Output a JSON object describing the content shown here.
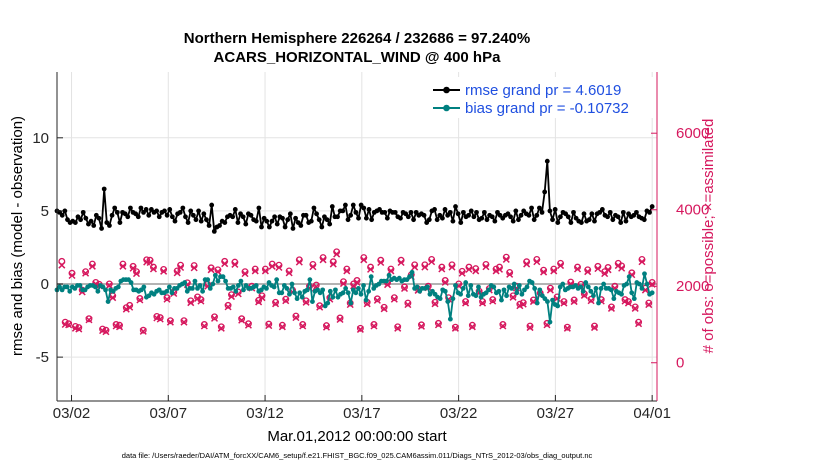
{
  "chart_data": {
    "type": "line",
    "title_line1": "Northern Hemisphere 226264 / 232686 = 97.240%",
    "title_line2": "ACARS_HORIZONTAL_WIND @ 400 hPa",
    "xlabel": "Mar.01,2012 00:00:00 start",
    "ylabel_left": "rmse and bias (model - observation)",
    "ylabel_right": "# of obs: o=possible; ×=assimilated",
    "footer": "data file: /Users/raeder/DAI/ATM_forcXX/CAM6_setup/f.e21.FHIST_BGC.f09_025.CAM6assim.011/Diags_NTrS_2012-03/obs_diag_output.nc",
    "x_ticks": [
      {
        "label": "03/02",
        "value": 1
      },
      {
        "label": "03/07",
        "value": 6
      },
      {
        "label": "03/12",
        "value": 11
      },
      {
        "label": "03/17",
        "value": 16
      },
      {
        "label": "03/22",
        "value": 21
      },
      {
        "label": "03/27",
        "value": 26
      },
      {
        "label": "04/01",
        "value": 31
      }
    ],
    "xlim": [
      0.25,
      31.25
    ],
    "ylim_left": [
      -8,
      14.5
    ],
    "yticks_left": [
      "-5",
      "0",
      "5",
      "10"
    ],
    "ylim_right": [
      -1000,
      7600
    ],
    "yticks_right": [
      "0",
      "2000",
      "4000",
      "6000"
    ],
    "series": [
      {
        "name": "rmse",
        "label": "rmse grand pr = 4.6019",
        "color": "#000000",
        "axis": "left",
        "values": [
          5.0,
          4.9,
          4.7,
          5.0,
          4.4,
          4.2,
          4.3,
          4.2,
          4.6,
          4.4,
          4.9,
          4.5,
          4.1,
          4.3,
          4.0,
          4.7,
          4.5,
          3.8,
          6.5,
          4.2,
          4.0,
          4.7,
          5.2,
          4.9,
          4.2,
          4.9,
          4.8,
          4.6,
          5.2,
          4.9,
          4.8,
          4.6,
          5.2,
          4.9,
          5.1,
          4.7,
          5.1,
          4.9,
          5.0,
          4.6,
          4.9,
          5.0,
          4.7,
          5.1,
          4.6,
          4.3,
          4.8,
          4.9,
          5.2,
          4.6,
          4.2,
          5.0,
          4.7,
          4.4,
          5.0,
          4.3,
          4.8,
          4.4,
          4.0,
          5.4,
          3.6,
          3.9,
          4.0,
          4.3,
          4.2,
          4.6,
          4.7,
          4.6,
          5.1,
          4.2,
          4.8,
          4.6,
          4.1,
          4.8,
          4.7,
          4.4,
          4.3,
          5.2,
          3.9,
          4.5,
          4.3,
          3.9,
          4.3,
          4.6,
          4.1,
          4.6,
          4.5,
          3.9,
          4.4,
          4.8,
          3.8,
          4.5,
          4.2,
          4.0,
          4.7,
          4.7,
          4.2,
          4.3,
          5.2,
          4.8,
          4.4,
          3.9,
          4.6,
          4.4,
          4.1,
          5.3,
          4.6,
          4.6,
          5.0,
          5.0,
          5.4,
          4.4,
          4.7,
          5.4,
          4.9,
          4.5,
          5.4,
          5.2,
          4.5,
          5.1,
          4.4,
          4.9,
          5.0,
          5.1,
          4.9,
          4.9,
          4.5,
          5.0,
          4.9,
          4.9,
          4.6,
          4.5,
          4.9,
          4.8,
          4.6,
          4.9,
          4.4,
          4.9,
          4.7,
          4.8,
          4.7,
          4.2,
          4.4,
          5.0,
          5.1,
          4.4,
          4.7,
          4.5,
          5.1,
          4.7,
          4.9,
          4.3,
          5.3,
          4.8,
          4.2,
          4.9,
          4.6,
          4.7,
          5.0,
          4.6,
          4.9,
          4.4,
          4.5,
          4.9,
          4.4,
          4.7,
          4.6,
          4.3,
          4.9,
          4.7,
          4.5,
          4.7,
          4.8,
          4.6,
          4.3,
          5.0,
          4.4,
          4.7,
          5.0,
          4.8,
          4.7,
          5.2,
          4.4,
          4.7,
          5.2,
          4.9,
          6.3,
          8.4,
          5.0,
          4.4,
          5.1,
          4.2,
          4.6,
          4.9,
          4.8,
          4.6,
          4.2,
          4.9,
          4.5,
          4.3,
          4.2,
          4.8,
          4.3,
          4.4,
          4.8,
          4.3,
          4.8,
          4.9,
          5.1,
          4.7,
          4.6,
          4.9,
          4.4,
          4.7,
          4.6,
          4.2,
          4.9,
          4.3,
          4.8,
          4.6,
          4.7,
          4.9,
          4.6,
          4.5,
          4.4,
          5.0,
          4.9,
          5.3
        ]
      },
      {
        "name": "bias",
        "label": "bias grand pr = -0.10732",
        "color": "#008080",
        "axis": "left",
        "values": [
          -0.4,
          -0.2,
          -0.4,
          -0.2,
          -0.2,
          -0.5,
          -0.2,
          -0.3,
          -0.1,
          -0.1,
          -0.4,
          -0.4,
          -0.2,
          -0.1,
          -0.1,
          -0.2,
          -0.5,
          -0.1,
          -0.2,
          -0.4,
          -1.2,
          -0.4,
          -0.5,
          -0.3,
          -0.2,
          0.2,
          0.3,
          0.3,
          0.3,
          0.1,
          -0.4,
          -0.4,
          -0.5,
          -0.4,
          -0.2,
          -0.9,
          -0.8,
          -0.6,
          -0.7,
          -0.5,
          -0.4,
          -0.6,
          -0.6,
          -0.5,
          -0.2,
          -0.6,
          -0.3,
          -0.3,
          -0.1,
          0.0,
          0.1,
          -0.5,
          -0.3,
          -0.3,
          0.2,
          -0.3,
          -0.1,
          -0.5,
          0.3,
          0.3,
          -0.3,
          0.0,
          0.6,
          0.2,
          0.5,
          0.5,
          0.2,
          -0.3,
          -0.3,
          -0.2,
          -0.5,
          -0.1,
          0.2,
          -0.4,
          -0.1,
          -0.3,
          -0.3,
          -0.2,
          -0.1,
          -0.5,
          -0.4,
          -0.2,
          -0.3,
          0.1,
          -0.1,
          -0.2,
          0.3,
          -0.6,
          -0.6,
          -0.1,
          -0.3,
          -0.7,
          0.0,
          -0.6,
          -1.0,
          -0.6,
          -0.9,
          -0.5,
          -0.4,
          0.3,
          -1.2,
          -0.5,
          -0.4,
          -0.6,
          -0.4,
          -1.5,
          -1.3,
          -0.5,
          -0.9,
          -0.4,
          -0.9,
          -0.7,
          -0.6,
          -0.3,
          -0.6,
          -1.3,
          -0.4,
          -0.6,
          -0.3,
          -0.7,
          -0.1,
          -1.1,
          -0.5,
          0.5,
          -0.3,
          -0.1,
          0.0,
          0.2,
          0.2,
          0.2,
          0.6,
          0.3,
          0.4,
          0.3,
          0.4,
          0.2,
          0.3,
          0.3,
          0.5,
          0.8,
          -0.3,
          -0.2,
          -0.5,
          -0.3,
          -0.3,
          -0.2,
          -0.7,
          -0.5,
          -0.7,
          -0.9,
          -1.0,
          -0.4,
          -0.5,
          -1.2,
          -2.4,
          -1.0,
          -0.1,
          -0.6,
          -0.7,
          -0.3,
          0.1,
          -0.8,
          -0.1,
          -0.7,
          -0.8,
          -0.2,
          -0.9,
          -0.7,
          -0.6,
          -0.4,
          -0.1,
          -0.2,
          -0.6,
          -0.5,
          -1.1,
          -0.4,
          -0.8,
          -0.2,
          -0.3,
          0.0,
          -0.6,
          -0.1,
          -0.7,
          -0.4,
          -0.2,
          0.2,
          0.1,
          -0.3,
          -1.3,
          -0.4,
          -0.8,
          -1.0,
          -1.2,
          -2.6,
          -1.1,
          -1.4,
          -1.5,
          -0.2,
          0.0,
          -0.4,
          -0.3,
          -0.2,
          -0.2,
          -0.1,
          -0.3,
          -0.2,
          -0.5,
          0.1,
          -0.2,
          -0.5,
          -0.8,
          -0.3,
          -1.3,
          -0.3,
          0.0,
          -0.3,
          -0.3,
          -0.4,
          -1.0,
          -0.5,
          -0.6,
          -0.7,
          -0.1,
          0.0,
          0.5,
          -0.6,
          -1.0,
          0.1,
          0.0,
          -0.3,
          0.7,
          0.0,
          -0.7,
          -0.6
        ]
      },
      {
        "name": "obs_possible",
        "label": "possible",
        "marker": "o",
        "color": "#d6185e",
        "axis": "right",
        "values": [
          2650,
          1060,
          1020,
          2340,
          950,
          920,
          1900,
          2380,
          1150,
          2580,
          2100,
          2050,
          880,
          850,
          2060,
          1750,
          1000,
          980,
          2580,
          1440,
          1500,
          2520,
          2380,
          1680,
          850,
          2690,
          2680,
          2500,
          1210,
          1180,
          2440,
          1700,
          1100,
          1850,
          2400,
          2550,
          1100,
          2090,
          1620,
          2540,
          1720,
          1650,
          1000,
          2050,
          2480,
          1200,
          2430,
          940,
          2650,
          1500,
          1780,
          2630,
          1850,
          1150,
          2380,
          1020,
          2000,
          2450,
          1630,
          1750,
          2450,
          1010,
          2580,
          1580,
          2550,
          980,
          1660,
          2400,
          1900,
          1220,
          2690,
          1000,
          1620,
          2000,
          2570,
          2030,
          1490,
          2750,
          970,
          1700,
          2640,
          2900,
          1170,
          2120,
          2450,
          1560,
          2060,
          2150,
          900,
          2750,
          1580,
          2500,
          1000,
          1670,
          2680,
          1450,
          2090,
          2450,
          1700,
          940,
          2680,
          1980,
          1560,
          2300,
          2560,
          1930,
          990,
          2560,
          2000,
          2700,
          1580,
          1030,
          2500,
          2150,
          1700,
          2560,
          930,
          2060,
          2390,
          1600,
          2500,
          980,
          2460,
          1870,
          1600,
          2570,
          1940,
          1650,
          2450,
          2500,
          1000,
          2760,
          2360,
          1750,
          2000,
          1530,
          1570,
          2640,
          960,
          1640,
          2700,
          1820,
          2420,
          1030,
          1950,
          2450,
          1720,
          2600,
          1600,
          930,
          2110,
          1640,
          2500,
          2050,
          1800,
          2430,
          1660,
          960,
          2520,
          1650,
          2380,
          2490,
          1460,
          2000,
          2600,
          2530,
          1650,
          1600,
          2350,
          1460,
          1060,
          2700,
          1950,
          1560,
          2100
        ]
      },
      {
        "name": "obs_assimilated",
        "label": "assimilated",
        "marker": "x",
        "color": "#d6185e",
        "axis": "right",
        "values": [
          2550,
          1000,
          990,
          2280,
          900,
          880,
          1850,
          2340,
          1120,
          2520,
          2060,
          2010,
          840,
          810,
          2020,
          1700,
          960,
          940,
          2520,
          1400,
          1450,
          2470,
          2330,
          1640,
          820,
          2630,
          2620,
          2450,
          1170,
          1140,
          2390,
          1660,
          1060,
          1810,
          2350,
          2490,
          1060,
          2040,
          1570,
          2480,
          1680,
          1610,
          960,
          2000,
          2430,
          1160,
          2380,
          900,
          2590,
          1460,
          1730,
          2570,
          1800,
          1110,
          2330,
          980,
          1950,
          2400,
          1590,
          1700,
          2400,
          970,
          2520,
          1540,
          2490,
          940,
          1620,
          2350,
          1850,
          1180,
          2630,
          960,
          1580,
          1950,
          2510,
          1990,
          1450,
          2690,
          930,
          1660,
          2580,
          2840,
          1130,
          2070,
          2400,
          1520,
          2010,
          2100,
          870,
          2690,
          1540,
          2440,
          960,
          1630,
          2620,
          1410,
          2040,
          2400,
          1660,
          900,
          2620,
          1940,
          1520,
          2250,
          2500,
          1890,
          950,
          2500,
          1960,
          2640,
          1540,
          990,
          2450,
          2100,
          1660,
          2500,
          900,
          2010,
          2340,
          1560,
          2440,
          940,
          2400,
          1830,
          1560,
          2510,
          1900,
          1610,
          2400,
          2440,
          960,
          2700,
          2310,
          1710,
          1950,
          1490,
          1530,
          2580,
          920,
          1600,
          2640,
          1780,
          2370,
          990,
          1900,
          2400,
          1680,
          2540,
          1560,
          900,
          2060,
          1600,
          2450,
          2000,
          1760,
          2380,
          1620,
          920,
          2460,
          1610,
          2330,
          2430,
          1420,
          1950,
          2540,
          2470,
          1610,
          1560,
          2300,
          1420,
          1020,
          2640,
          1900,
          1520,
          2050
        ]
      }
    ]
  },
  "colors": {
    "rmse": "#000000",
    "bias": "#008080",
    "obs": "#d6185e",
    "legend_text": "#1f4fe0",
    "right_axis": "#d6185e",
    "zero_line": "#b3b3b3"
  }
}
